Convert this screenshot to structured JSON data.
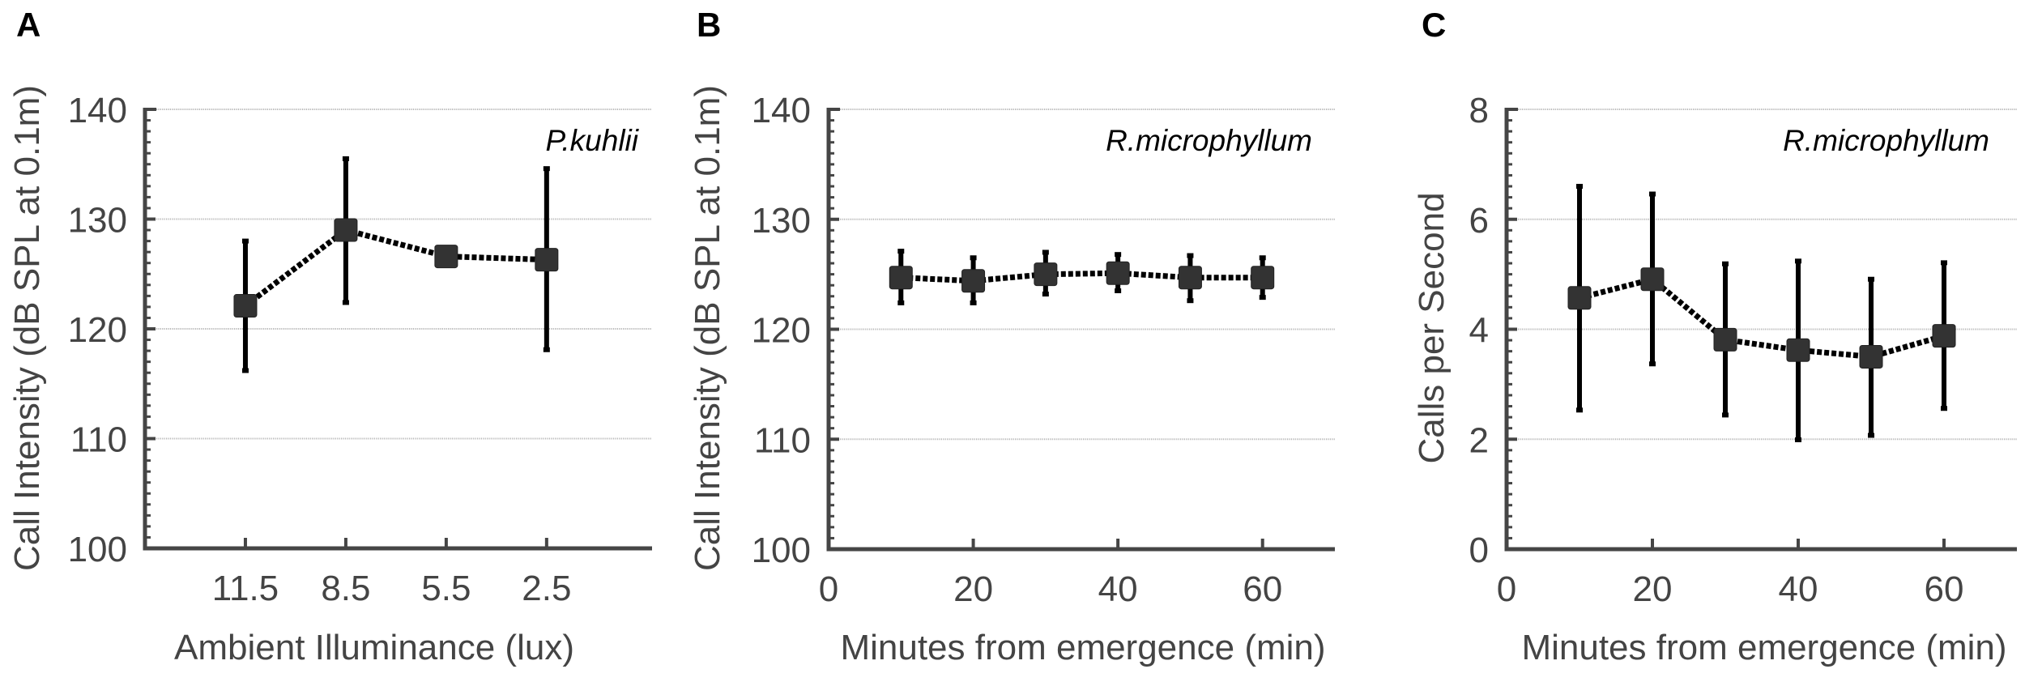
{
  "figure": {
    "panels": [
      {
        "letter": "A",
        "species": "P.kuhlii",
        "ylabel": "Call Intensity (dB SPL at 0.1m)",
        "xlabel": "Ambient Illuminance (lux)"
      },
      {
        "letter": "B",
        "species": "R.microphyllum",
        "ylabel": "Call Intensity (dB SPL at 0.1m)",
        "xlabel": "Minutes from emergence (min)"
      },
      {
        "letter": "C",
        "species": "R.microphyllum",
        "ylabel": "Calls per Second",
        "xlabel": "Minutes from emergence (min)"
      }
    ]
  },
  "colors": {
    "axis": "#454545",
    "text": "#444444",
    "marker": "#333333",
    "errorbar": "#000000",
    "grid": "#b8b8b8"
  },
  "chart_data": [
    {
      "type": "line",
      "panel": "A",
      "title": "P.kuhlii",
      "xlabel": "Ambient Illuminance (lux)",
      "ylabel": "Call Intensity (dB SPL at 0.1m)",
      "x_kind": "categorical",
      "categories": [
        "11.5",
        "8.5",
        "5.5",
        "2.5"
      ],
      "category_slots": 5,
      "series": [
        {
          "name": "mean",
          "values": [
            122.1,
            129.0,
            126.6,
            126.3
          ],
          "err_low": [
            116.2,
            122.4,
            126.6,
            118.1
          ],
          "err_high": [
            128.0,
            135.5,
            126.6,
            134.6
          ]
        }
      ],
      "ylim": [
        100,
        140
      ],
      "yticks": [
        100,
        110,
        120,
        130,
        140
      ],
      "ytick_labels": [
        "100",
        "110",
        "120",
        "130",
        "140"
      ],
      "y_minor_step": 1,
      "grid": "horizontal",
      "legend": "none"
    },
    {
      "type": "line",
      "panel": "B",
      "title": "R.microphyllum",
      "xlabel": "Minutes from emergence (min)",
      "ylabel": "Call Intensity (dB SPL at 0.1m)",
      "x_kind": "numeric",
      "x": [
        10,
        20,
        30,
        40,
        50,
        60
      ],
      "xlim": [
        0,
        70
      ],
      "xticks": [
        0,
        20,
        40,
        60
      ],
      "xtick_labels": [
        "0",
        "20",
        "40",
        "60"
      ],
      "series": [
        {
          "name": "mean",
          "values": [
            124.7,
            124.4,
            125.0,
            125.1,
            124.7,
            124.7
          ],
          "err_low": [
            122.4,
            122.4,
            123.2,
            123.5,
            122.6,
            122.9
          ],
          "err_high": [
            127.1,
            126.5,
            127.0,
            126.8,
            126.7,
            126.5
          ]
        }
      ],
      "ylim": [
        100,
        140
      ],
      "yticks": [
        100,
        110,
        120,
        130,
        140
      ],
      "ytick_labels": [
        "100",
        "110",
        "120",
        "130",
        "140"
      ],
      "y_minor_step": 1,
      "grid": "horizontal",
      "legend": "none"
    },
    {
      "type": "line",
      "panel": "C",
      "title": "R.microphyllum",
      "xlabel": "Minutes from emergence (min)",
      "ylabel": "Calls per Second",
      "x_kind": "numeric",
      "x": [
        10,
        20,
        30,
        40,
        50,
        60
      ],
      "xlim": [
        0,
        70
      ],
      "xticks": [
        0,
        20,
        40,
        60
      ],
      "xtick_labels": [
        "0",
        "20",
        "40",
        "60"
      ],
      "series": [
        {
          "name": "mean",
          "values": [
            4.57,
            4.91,
            3.81,
            3.62,
            3.5,
            3.88
          ],
          "err_low": [
            2.53,
            3.37,
            2.44,
            1.99,
            2.07,
            2.56
          ],
          "err_high": [
            6.6,
            6.46,
            5.19,
            5.24,
            4.91,
            5.21
          ]
        }
      ],
      "ylim": [
        0,
        8
      ],
      "yticks": [
        0,
        2,
        4,
        6,
        8
      ],
      "ytick_labels": [
        "0",
        "2",
        "4",
        "6",
        "8"
      ],
      "y_minor_step": 0.2,
      "grid": "horizontal",
      "legend": "none"
    }
  ]
}
